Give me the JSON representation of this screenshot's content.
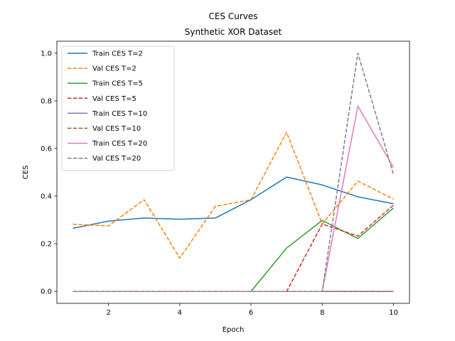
{
  "chart_data": {
    "type": "line",
    "title": "CES Curves",
    "subtitle": "Synthetic XOR Dataset",
    "xlabel": "Epoch",
    "ylabel": "CES",
    "xlim": [
      0.55,
      10.45
    ],
    "ylim": [
      -0.05,
      1.05
    ],
    "xticks": [
      2,
      4,
      6,
      8,
      10
    ],
    "yticks": [
      0.0,
      0.2,
      0.4,
      0.6,
      0.8,
      1.0
    ],
    "ytick_labels": [
      "0.0",
      "0.2",
      "0.4",
      "0.6",
      "0.8",
      "1.0"
    ],
    "grid": false,
    "legend_position": "top-left",
    "x": [
      1,
      2,
      3,
      4,
      5,
      6,
      7,
      8,
      9,
      10
    ],
    "series": [
      {
        "name": "Train CES T=2",
        "color": "#1f77b4",
        "style": "solid",
        "values": [
          0.265,
          0.295,
          0.308,
          0.303,
          0.308,
          0.385,
          0.48,
          0.447,
          0.397,
          0.368
        ]
      },
      {
        "name": "Val CES T=2",
        "color": "#ff7f0e",
        "style": "dashed",
        "values": [
          0.282,
          0.275,
          0.385,
          0.14,
          0.357,
          0.385,
          0.668,
          0.283,
          0.463,
          0.387
        ]
      },
      {
        "name": "Train CES T=5",
        "color": "#2ca02c",
        "style": "solid",
        "values": [
          0.0,
          0.0,
          0.0,
          0.0,
          0.0,
          0.0,
          0.182,
          0.298,
          0.222,
          0.35
        ]
      },
      {
        "name": "Val CES T=5",
        "color": "#d62728",
        "style": "dashed",
        "values": [
          0.0,
          0.0,
          0.0,
          0.0,
          0.0,
          0.0,
          0.0,
          0.283,
          0.232,
          0.362
        ]
      },
      {
        "name": "Train CES T=10",
        "color": "#9467bd",
        "style": "solid",
        "values": [
          0.0,
          0.0,
          0.0,
          0.0,
          0.0,
          0.0,
          0.0,
          0.0,
          0.0,
          0.0
        ]
      },
      {
        "name": "Val CES T=10",
        "color": "#8c564b",
        "style": "dashed",
        "values": [
          0.0,
          0.0,
          0.0,
          0.0,
          0.0,
          0.0,
          0.0,
          0.0,
          0.0,
          0.0
        ]
      },
      {
        "name": "Train CES T=20",
        "color": "#e377c2",
        "style": "solid",
        "values": [
          0.0,
          0.0,
          0.0,
          0.0,
          0.0,
          0.0,
          0.0,
          0.0,
          0.778,
          0.52
        ]
      },
      {
        "name": "Val CES T=20",
        "color": "#7f7f7f",
        "style": "dashed",
        "values": [
          0.0,
          0.0,
          0.0,
          0.0,
          0.0,
          0.0,
          0.0,
          0.0,
          1.0,
          0.49
        ]
      }
    ]
  }
}
